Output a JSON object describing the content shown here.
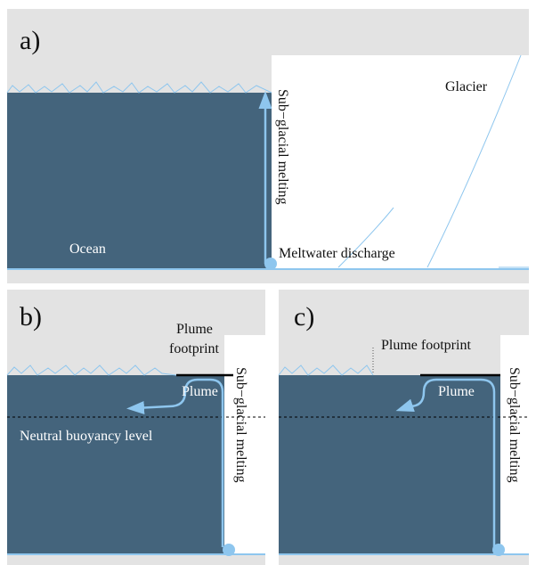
{
  "panels": [
    {
      "label": "a)",
      "glacier": "Glacier",
      "melting": "Sub−glacial melting",
      "ocean": "Ocean",
      "discharge": "Meltwater discharge"
    },
    {
      "label": "b)",
      "footprint": [
        "Plume",
        "footprint"
      ],
      "plume": "Plume",
      "neutral": "Neutral buoyancy level",
      "melting": "Sub−glacial melting"
    },
    {
      "label": "c)",
      "footprint": "Plume footprint",
      "plume": "Plume",
      "melting": "Sub−glacial melting"
    }
  ]
}
